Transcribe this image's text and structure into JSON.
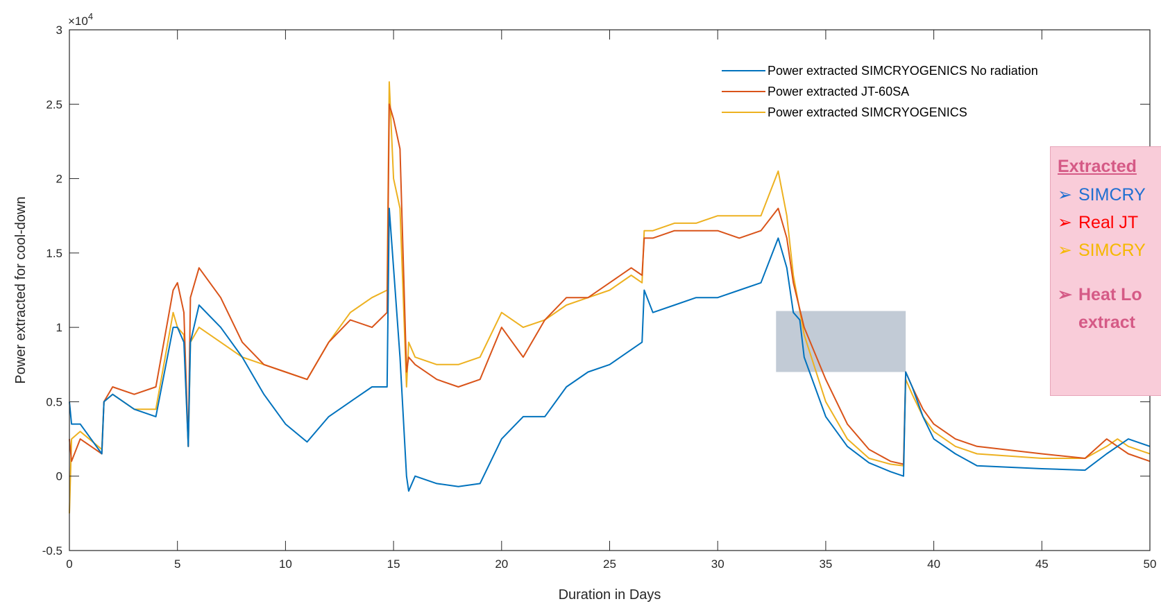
{
  "chart_data": {
    "type": "line",
    "title": "",
    "xlabel": "Duration in Days",
    "ylabel": "Power extracted for cool-down",
    "xlim": [
      0,
      50
    ],
    "ylim": [
      -5000,
      30000
    ],
    "xticks": [
      0,
      5,
      10,
      15,
      20,
      25,
      30,
      35,
      40,
      45,
      50
    ],
    "yticks": [
      -5000,
      0,
      5000,
      10000,
      15000,
      20000,
      25000,
      30000
    ],
    "ytick_labels": [
      "-0.5",
      "0",
      "0.5",
      "1",
      "1.5",
      "2",
      "2.5",
      "3"
    ],
    "y_exponent_label": "×10",
    "y_exponent_power": "4",
    "grid": false,
    "legend_position": "top-right",
    "series": [
      {
        "name": "Power extracted SIMCRYOGENICS No radiation",
        "color": "#0072BD",
        "x": [
          0,
          0.1,
          0.5,
          1.5,
          1.6,
          2,
          3,
          4,
          4.8,
          5,
          5.3,
          5.5,
          5.6,
          6,
          7,
          8,
          9,
          10,
          11,
          12,
          13,
          14,
          14.7,
          14.8,
          15,
          15.3,
          15.6,
          15.7,
          16,
          17,
          18,
          19,
          20,
          21,
          22,
          23,
          24,
          25,
          26,
          26.5,
          26.6,
          27,
          28,
          29,
          30,
          31,
          32,
          32.8,
          33.2,
          33.5,
          33.8,
          34,
          35,
          36,
          37,
          38,
          38.6,
          38.7,
          39,
          39.5,
          40,
          41,
          42,
          45,
          47,
          48,
          48.5,
          49,
          50
        ],
        "y": [
          5000,
          3500,
          3500,
          1500,
          5000,
          5500,
          4500,
          4000,
          10000,
          10000,
          9000,
          2000,
          9000,
          11500,
          10000,
          8000,
          5500,
          3500,
          2300,
          4000,
          5000,
          6000,
          6000,
          18000,
          14000,
          8000,
          0,
          -1000,
          0,
          -500,
          -700,
          -500,
          2500,
          4000,
          4000,
          6000,
          7000,
          7500,
          8500,
          9000,
          12500,
          11000,
          11500,
          12000,
          12000,
          12500,
          13000,
          16000,
          14000,
          11000,
          10500,
          8000,
          4000,
          2000,
          900,
          300,
          0,
          7000,
          6000,
          4000,
          2500,
          1500,
          700,
          500,
          400,
          1500,
          2000,
          2500,
          2000
        ]
      },
      {
        "name": "Power extracted JT-60SA",
        "color": "#D95319",
        "x": [
          0,
          0.1,
          0.5,
          1.5,
          1.6,
          2,
          3,
          4,
          4.8,
          5,
          5.3,
          5.5,
          5.6,
          6,
          7,
          8,
          9,
          10,
          11,
          12,
          13,
          14,
          14.7,
          14.8,
          15,
          15.3,
          15.6,
          15.7,
          16,
          17,
          18,
          19,
          20,
          21,
          22,
          23,
          24,
          25,
          26,
          26.5,
          26.6,
          27,
          28,
          29,
          30,
          31,
          32,
          32.8,
          33.2,
          33.5,
          34,
          35,
          36,
          37,
          38,
          38.6,
          38.7,
          39,
          39.5,
          40,
          41,
          42,
          45,
          47,
          48,
          48.5,
          49,
          50
        ],
        "y": [
          2500,
          1000,
          2500,
          1500,
          5000,
          6000,
          5500,
          6000,
          12500,
          13000,
          11000,
          2000,
          12000,
          14000,
          12000,
          9000,
          7500,
          7000,
          6500,
          9000,
          10500,
          10000,
          11000,
          25000,
          24000,
          22000,
          7000,
          8000,
          7500,
          6500,
          6000,
          6500,
          10000,
          8000,
          10500,
          12000,
          12000,
          13000,
          14000,
          13500,
          16000,
          16000,
          16500,
          16500,
          16500,
          16000,
          16500,
          18000,
          16000,
          13000,
          10000,
          6500,
          3500,
          1800,
          1000,
          800,
          7000,
          6000,
          4500,
          3500,
          2500,
          2000,
          1500,
          1200,
          2500,
          2000,
          1500,
          1000
        ]
      },
      {
        "name": "Power extracted SIMCRYOGENICS",
        "color": "#EDB120",
        "x": [
          0,
          0.1,
          0.5,
          1.5,
          1.6,
          2,
          3,
          4,
          4.8,
          5,
          5.3,
          5.5,
          5.6,
          6,
          7,
          8,
          9,
          10,
          11,
          12,
          13,
          14,
          14.7,
          14.8,
          15,
          15.3,
          15.6,
          15.7,
          16,
          17,
          18,
          19,
          20,
          21,
          22,
          23,
          24,
          25,
          26,
          26.5,
          26.6,
          27,
          28,
          29,
          30,
          31,
          32,
          32.8,
          33.2,
          33.5,
          34,
          35,
          36,
          37,
          38,
          38.6,
          38.7,
          39,
          39.5,
          40,
          41,
          42,
          45,
          47,
          48,
          48.5,
          49,
          50
        ],
        "y": [
          -2500,
          2500,
          3000,
          1800,
          5000,
          5500,
          4500,
          4500,
          11000,
          10000,
          9500,
          2000,
          9000,
          10000,
          9000,
          8000,
          7500,
          7000,
          6500,
          9000,
          11000,
          12000,
          12500,
          26500,
          20000,
          18000,
          6000,
          9000,
          8000,
          7500,
          7500,
          8000,
          11000,
          10000,
          10500,
          11500,
          12000,
          12500,
          13500,
          13000,
          16500,
          16500,
          17000,
          17000,
          17500,
          17500,
          17500,
          20500,
          17500,
          13500,
          9500,
          5000,
          2500,
          1200,
          800,
          700,
          6500,
          5500,
          4000,
          3000,
          2000,
          1500,
          1200,
          1200,
          2000,
          2500,
          2000,
          1500
        ]
      }
    ],
    "annotations": [
      {
        "type": "shaded-rectangle",
        "x_range": [
          32.7,
          38.7
        ],
        "y_range": [
          7000,
          11100
        ],
        "color": "#8fa0b4"
      }
    ]
  },
  "callout": {
    "title": "Extracted",
    "items": [
      {
        "text": "SIMCRY",
        "color": "#1f6fd1",
        "arrow_color": "#1f6fd1"
      },
      {
        "text": "Real JT",
        "color": "#ff0000",
        "arrow_color": "#ff0000"
      },
      {
        "text": "SIMCRY",
        "color": "#f5b800",
        "arrow_color": "#f5b800"
      }
    ],
    "bold_lines": [
      "Heat Lo",
      "extract"
    ],
    "arrow_glyph": "➢",
    "background": "#f9ccd9"
  }
}
